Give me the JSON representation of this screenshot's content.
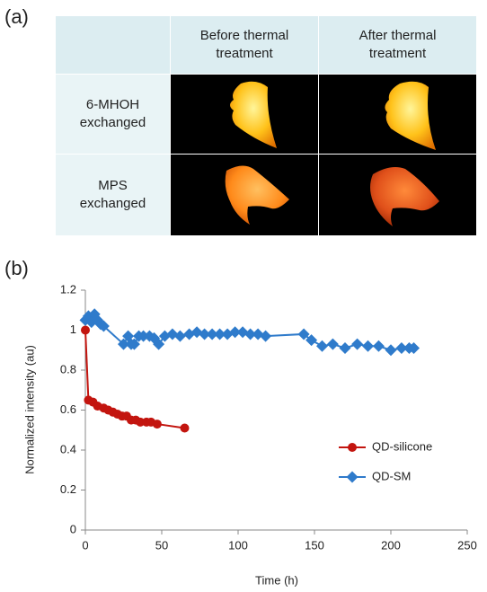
{
  "panel_labels": [
    "(a)",
    "(b)"
  ],
  "table": {
    "header": [
      "Before thermal treatment",
      "After thermal treatment"
    ],
    "rows": [
      {
        "label": "6-MHOH exchanged"
      },
      {
        "label": "MPS exchanged"
      }
    ]
  },
  "chart_data": {
    "type": "line",
    "xlabel": "Time (h)",
    "ylabel": "Normalized intensity (au)",
    "xlim": [
      0,
      250
    ],
    "xticks": [
      0,
      50,
      100,
      150,
      200,
      250
    ],
    "ylim": [
      0,
      1.2
    ],
    "yticks": [
      0,
      0.2,
      0.4,
      0.6,
      0.8,
      1,
      1.2
    ],
    "grid": false,
    "legend": "lower right",
    "series": [
      {
        "name": "QD-silicone",
        "color": "#c3150f",
        "marker": "circle",
        "x": [
          0,
          2,
          5,
          8,
          12,
          15,
          18,
          21,
          24,
          27,
          30,
          33,
          36,
          40,
          43,
          47,
          65
        ],
        "values": [
          1,
          0.65,
          0.64,
          0.62,
          0.61,
          0.6,
          0.59,
          0.58,
          0.57,
          0.57,
          0.55,
          0.55,
          0.54,
          0.54,
          0.54,
          0.53,
          0.51
        ]
      },
      {
        "name": "QD-SM",
        "color": "#2f7bcb",
        "marker": "diamond",
        "x": [
          0,
          2,
          4,
          6,
          8,
          10,
          12,
          25,
          28,
          30,
          32,
          35,
          38,
          42,
          45,
          48,
          52,
          57,
          62,
          68,
          73,
          78,
          83,
          88,
          93,
          98,
          103,
          108,
          113,
          118,
          143,
          148,
          155,
          162,
          170,
          178,
          185,
          192,
          200,
          207,
          212,
          215
        ],
        "values": [
          1.05,
          1.07,
          1.04,
          1.08,
          1.05,
          1.03,
          1.02,
          0.93,
          0.97,
          0.93,
          0.93,
          0.97,
          0.97,
          0.97,
          0.96,
          0.93,
          0.97,
          0.98,
          0.97,
          0.98,
          0.99,
          0.98,
          0.98,
          0.98,
          0.98,
          0.99,
          0.99,
          0.98,
          0.98,
          0.97,
          0.98,
          0.95,
          0.92,
          0.93,
          0.91,
          0.93,
          0.92,
          0.92,
          0.9,
          0.91,
          0.91,
          0.91
        ]
      }
    ]
  }
}
